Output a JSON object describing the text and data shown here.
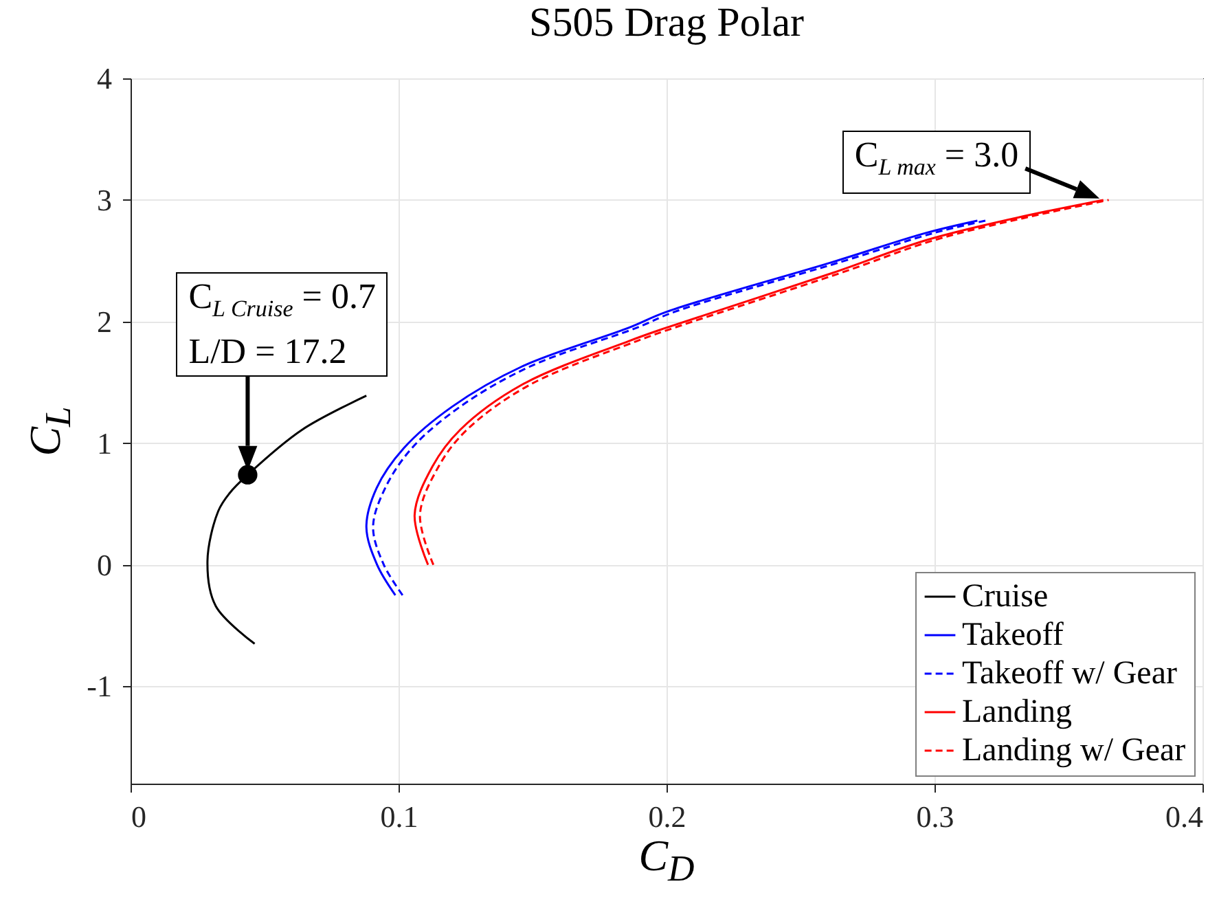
{
  "chart_data": {
    "type": "line",
    "title": "S505 Drag Polar",
    "xlabel": "C$_{D}$",
    "ylabel": "C$_{L}$",
    "xlim": [
      0,
      0.4
    ],
    "xticks": [
      0,
      0.1,
      0.2,
      0.3,
      0.4
    ],
    "ylim": [
      -1.8,
      4
    ],
    "yticks": [
      -1,
      0,
      1,
      2,
      3,
      4
    ],
    "grid": true,
    "legend": "bottom right",
    "series": [
      {
        "name": "Cruise",
        "color": "#000000",
        "line_style": "solid",
        "x": [
          0.0463,
          0.0318,
          0.0287,
          0.0327,
          0.037,
          0.0437,
          0.064,
          0.088
        ],
        "values": [
          -0.65,
          -0.34,
          0.03,
          0.44,
          0.59,
          0.74,
          1.11,
          1.39
        ]
      },
      {
        "name": "Takeoff",
        "color": "#0000ff",
        "line_style": "solid",
        "x": [
          0.0988,
          0.092,
          0.088,
          0.0918,
          0.102,
          0.12,
          0.146,
          0.186,
          0.2,
          0.262,
          0.297,
          0.316
        ],
        "values": [
          -0.25,
          0.0,
          0.31,
          0.63,
          0.96,
          1.3,
          1.63,
          1.95,
          2.08,
          2.49,
          2.73,
          2.83
        ]
      },
      {
        "name": "Takeoff w/ Gear",
        "color": "#0000ff",
        "line_style": "dashed",
        "x": [
          0.1015,
          0.0945,
          0.0905,
          0.095,
          0.105,
          0.123,
          0.149,
          0.189,
          0.203,
          0.265,
          0.3,
          0.319
        ],
        "values": [
          -0.25,
          0.0,
          0.31,
          0.63,
          0.96,
          1.3,
          1.63,
          1.95,
          2.08,
          2.49,
          2.73,
          2.83
        ]
      },
      {
        "name": "Landing",
        "color": "#ff0000",
        "line_style": "solid",
        "x": [
          0.111,
          0.106,
          0.1127,
          0.123,
          0.146,
          0.186,
          0.2,
          0.262,
          0.297,
          0.33,
          0.363
        ],
        "values": [
          0.0,
          0.41,
          0.81,
          1.11,
          1.48,
          1.84,
          1.95,
          2.4,
          2.67,
          2.85,
          3.0
        ]
      },
      {
        "name": "Landing w/ Gear",
        "color": "#ff0000",
        "line_style": "dashed",
        "x": [
          0.113,
          0.108,
          0.115,
          0.1255,
          0.149,
          0.189,
          0.203,
          0.265,
          0.3,
          0.333,
          0.365
        ],
        "values": [
          0.0,
          0.41,
          0.81,
          1.11,
          1.48,
          1.84,
          1.95,
          2.4,
          2.67,
          2.85,
          3.0
        ]
      },
      {
        "type": "scatter",
        "color": "#000000",
        "marker": "circle",
        "x": [
          0.0437
        ],
        "values": [
          0.74
        ]
      }
    ],
    "annotations": [
      {
        "text": "C$_{L Cruise}$ = 0.7\nL/D = 17.2",
        "x": 0.0437,
        "y": 0.74
      },
      {
        "text": "C$_{L max}$ = 3.0",
        "x": 0.363,
        "y": 3.0
      }
    ]
  }
}
